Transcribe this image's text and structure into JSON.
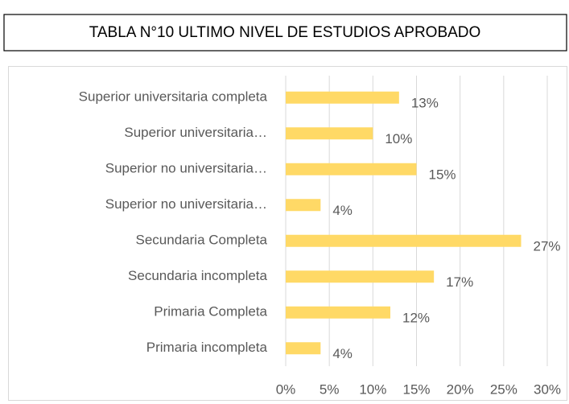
{
  "chart_data": {
    "type": "hbar",
    "title": "TABLA N°10 ULTIMO NIVEL DE ESTUDIOS APROBADO",
    "categories": [
      "Superior universitaria completa",
      "Superior universitaria…",
      "Superior no universitaria…",
      "Superior no universitaria…",
      "Secundaria Completa",
      "Secundaria incompleta",
      "Primaria Completa",
      "Primaria incompleta"
    ],
    "values": [
      13,
      10,
      15,
      4,
      27,
      17,
      12,
      4
    ],
    "value_labels": [
      "13%",
      "10%",
      "15%",
      "4%",
      "27%",
      "17%",
      "12%",
      "4%"
    ],
    "color": "#ffd966",
    "xlim": [
      0,
      30
    ],
    "xticks": [
      {
        "value": 0,
        "label": "0%"
      },
      {
        "value": 5,
        "label": "5%"
      },
      {
        "value": 10,
        "label": "10%"
      },
      {
        "value": 15,
        "label": "15%"
      },
      {
        "value": 20,
        "label": "20%"
      },
      {
        "value": 25,
        "label": "25%"
      },
      {
        "value": 30,
        "label": "30%"
      }
    ],
    "grid": true
  }
}
